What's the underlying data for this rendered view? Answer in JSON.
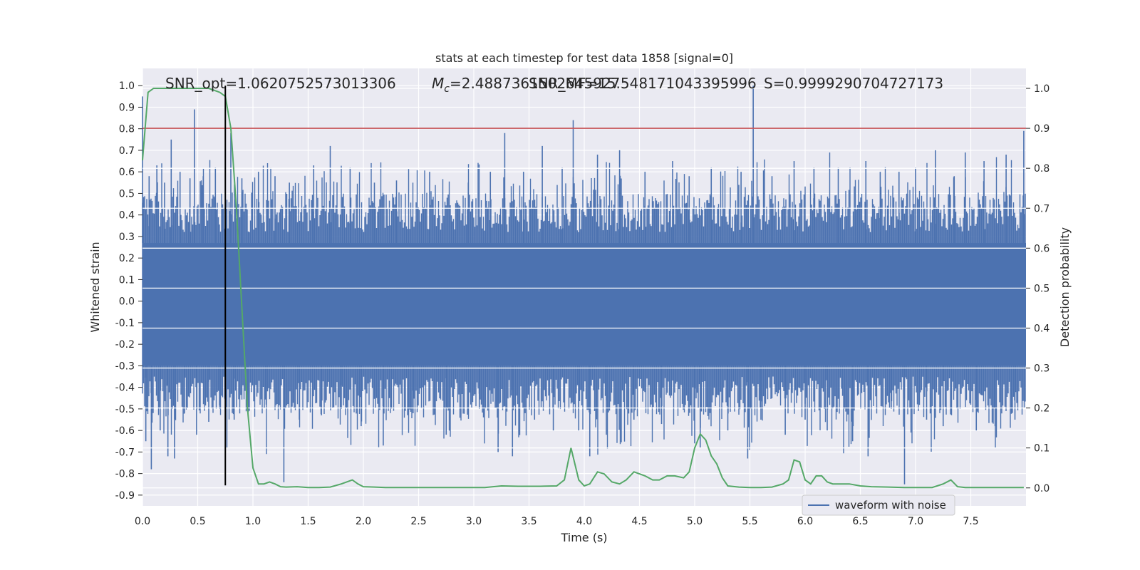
{
  "chart_data": {
    "type": "line",
    "title": "stats at each timestep for test data 1858 [signal=0]",
    "xlabel": "Time (s)",
    "ylabel": "Whitened strain",
    "y2label": "Detection probability",
    "xlim": [
      0,
      8
    ],
    "ylim": [
      -0.95,
      1.08
    ],
    "y2lim": [
      -0.045,
      1.05
    ],
    "xticks": [
      "0.0",
      "0.5",
      "1.0",
      "1.5",
      "2.0",
      "2.5",
      "3.0",
      "3.5",
      "4.0",
      "4.5",
      "5.0",
      "5.5",
      "6.0",
      "6.5",
      "7.0",
      "7.5"
    ],
    "yticks": [
      "-0.9",
      "-0.8",
      "-0.7",
      "-0.6",
      "-0.5",
      "-0.4",
      "-0.3",
      "-0.2",
      "-0.1",
      "0.0",
      "0.1",
      "0.2",
      "0.3",
      "0.4",
      "0.5",
      "0.6",
      "0.7",
      "0.8",
      "0.9",
      "1.0"
    ],
    "y2ticks": [
      "0.0",
      "0.1",
      "0.2",
      "0.3",
      "0.4",
      "0.5",
      "0.6",
      "0.7",
      "0.8",
      "0.9",
      "1.0"
    ],
    "grid": true,
    "legend_placement": "lower-right",
    "annotations": [
      {
        "text": "SNR_opt=1.0620752573013306"
      },
      {
        "text": "M",
        "sub": "c",
        "text_after": "=2.4887361502645927"
      },
      {
        "text": "SNR_MF=15.548171043395996"
      },
      {
        "text": "S=0.9999290704727173"
      }
    ],
    "threshold": {
      "axis": "y2",
      "value": 0.9,
      "color": "#c44e52"
    },
    "vline": {
      "x": 0.75,
      "color": "#000000",
      "y_range": [
        -0.855,
        1.0
      ]
    },
    "series": [
      {
        "name": "waveform with noise",
        "axis": "y",
        "color": "#4c72b0",
        "band_core": [
          -0.3,
          0.27
        ],
        "spikes": [
          {
            "x": 0.0,
            "v": 0.95
          },
          {
            "x": 0.03,
            "v": -0.65
          },
          {
            "x": 0.06,
            "v": 0.58
          },
          {
            "x": 0.08,
            "v": -0.78
          },
          {
            "x": 0.13,
            "v": 0.63
          },
          {
            "x": 0.16,
            "v": -0.6
          },
          {
            "x": 0.2,
            "v": 0.55
          },
          {
            "x": 0.23,
            "v": -0.72
          },
          {
            "x": 0.26,
            "v": 0.75
          },
          {
            "x": 0.29,
            "v": -0.73
          },
          {
            "x": 0.34,
            "v": 0.6
          },
          {
            "x": 0.38,
            "v": -0.52
          },
          {
            "x": 0.43,
            "v": 0.57
          },
          {
            "x": 0.47,
            "v": 0.89
          },
          {
            "x": 0.49,
            "v": -0.62
          },
          {
            "x": 0.55,
            "v": 0.58
          },
          {
            "x": 0.6,
            "v": -0.56
          },
          {
            "x": 0.66,
            "v": 0.62
          },
          {
            "x": 0.7,
            "v": -0.5
          },
          {
            "x": 0.8,
            "v": 0.78
          },
          {
            "x": 0.83,
            "v": -0.55
          },
          {
            "x": 0.9,
            "v": 0.57
          },
          {
            "x": 0.95,
            "v": -0.5
          },
          {
            "x": 1.05,
            "v": 0.6
          },
          {
            "x": 1.12,
            "v": -0.48
          },
          {
            "x": 1.2,
            "v": 0.58
          },
          {
            "x": 1.28,
            "v": -0.84
          },
          {
            "x": 1.33,
            "v": 0.55
          },
          {
            "x": 1.42,
            "v": -0.55
          },
          {
            "x": 1.55,
            "v": 0.63
          },
          {
            "x": 1.62,
            "v": -0.53
          },
          {
            "x": 1.7,
            "v": 0.72
          },
          {
            "x": 1.8,
            "v": -0.5
          },
          {
            "x": 1.88,
            "v": 0.62
          },
          {
            "x": 1.98,
            "v": -0.58
          },
          {
            "x": 2.1,
            "v": 0.55
          },
          {
            "x": 2.18,
            "v": -0.67
          },
          {
            "x": 2.3,
            "v": 0.56
          },
          {
            "x": 2.45,
            "v": -0.52
          },
          {
            "x": 2.6,
            "v": 0.6
          },
          {
            "x": 2.75,
            "v": -0.62
          },
          {
            "x": 2.95,
            "v": 0.55
          },
          {
            "x": 3.05,
            "v": -0.5
          },
          {
            "x": 3.15,
            "v": 0.6
          },
          {
            "x": 3.22,
            "v": -0.7
          },
          {
            "x": 3.28,
            "v": 0.78
          },
          {
            "x": 3.35,
            "v": -0.72
          },
          {
            "x": 3.45,
            "v": 0.6
          },
          {
            "x": 3.55,
            "v": -0.55
          },
          {
            "x": 3.62,
            "v": 0.72
          },
          {
            "x": 3.72,
            "v": -0.6
          },
          {
            "x": 3.8,
            "v": 0.62
          },
          {
            "x": 3.9,
            "v": 0.84
          },
          {
            "x": 3.95,
            "v": -0.6
          },
          {
            "x": 4.05,
            "v": -0.72
          },
          {
            "x": 4.12,
            "v": 0.68
          },
          {
            "x": 4.2,
            "v": -0.62
          },
          {
            "x": 4.32,
            "v": 0.7
          },
          {
            "x": 4.45,
            "v": -0.55
          },
          {
            "x": 4.55,
            "v": 0.6
          },
          {
            "x": 4.7,
            "v": -0.57
          },
          {
            "x": 4.8,
            "v": 0.65
          },
          {
            "x": 4.95,
            "v": 0.58
          },
          {
            "x": 5.0,
            "v": -0.66
          },
          {
            "x": 5.05,
            "v": -0.68
          },
          {
            "x": 5.15,
            "v": 0.62
          },
          {
            "x": 5.3,
            "v": -0.6
          },
          {
            "x": 5.42,
            "v": 0.6
          },
          {
            "x": 5.48,
            "v": -0.73
          },
          {
            "x": 5.53,
            "v": 1.0
          },
          {
            "x": 5.6,
            "v": -0.55
          },
          {
            "x": 5.7,
            "v": 0.58
          },
          {
            "x": 5.82,
            "v": -0.62
          },
          {
            "x": 5.9,
            "v": 0.65
          },
          {
            "x": 6.0,
            "v": -0.55
          },
          {
            "x": 6.08,
            "v": 0.62
          },
          {
            "x": 6.2,
            "v": -0.6
          },
          {
            "x": 6.3,
            "v": 0.62
          },
          {
            "x": 6.43,
            "v": -0.65
          },
          {
            "x": 6.55,
            "v": 0.65
          },
          {
            "x": 6.57,
            "v": -0.72
          },
          {
            "x": 6.68,
            "v": 0.6
          },
          {
            "x": 6.78,
            "v": -0.5
          },
          {
            "x": 6.85,
            "v": 0.6
          },
          {
            "x": 6.9,
            "v": -0.85
          },
          {
            "x": 7.0,
            "v": 0.62
          },
          {
            "x": 7.1,
            "v": -0.55
          },
          {
            "x": 7.18,
            "v": 0.7
          },
          {
            "x": 7.25,
            "v": -0.58
          },
          {
            "x": 7.35,
            "v": 0.58
          },
          {
            "x": 7.45,
            "v": 0.69
          },
          {
            "x": 7.55,
            "v": -0.6
          },
          {
            "x": 7.62,
            "v": 0.65
          },
          {
            "x": 7.72,
            "v": -0.58
          },
          {
            "x": 7.82,
            "v": 0.68
          },
          {
            "x": 7.9,
            "v": -0.55
          },
          {
            "x": 7.98,
            "v": 0.79
          }
        ]
      },
      {
        "axis": "y2",
        "color": "#55a868",
        "x": [
          0.0,
          0.05,
          0.1,
          0.2,
          0.3,
          0.4,
          0.5,
          0.6,
          0.7,
          0.75,
          0.8,
          0.85,
          0.9,
          0.95,
          1.0,
          1.05,
          1.1,
          1.15,
          1.2,
          1.25,
          1.3,
          1.4,
          1.5,
          1.6,
          1.7,
          1.8,
          1.9,
          1.95,
          2.0,
          2.1,
          2.2,
          2.3,
          2.5,
          2.7,
          2.9,
          3.1,
          3.25,
          3.4,
          3.6,
          3.75,
          3.82,
          3.88,
          3.95,
          4.0,
          4.05,
          4.12,
          4.18,
          4.25,
          4.32,
          4.38,
          4.45,
          4.5,
          4.55,
          4.62,
          4.68,
          4.75,
          4.82,
          4.9,
          4.95,
          5.0,
          5.05,
          5.1,
          5.15,
          5.2,
          5.25,
          5.3,
          5.4,
          5.5,
          5.6,
          5.7,
          5.8,
          5.85,
          5.9,
          5.95,
          6.0,
          6.05,
          6.1,
          6.15,
          6.2,
          6.25,
          6.3,
          6.4,
          6.5,
          6.6,
          6.75,
          6.9,
          7.0,
          7.15,
          7.25,
          7.32,
          7.38,
          7.45,
          7.6,
          7.75,
          7.9,
          7.98
        ],
        "y": [
          0.82,
          0.99,
          1.0,
          1.0,
          1.0,
          1.0,
          1.0,
          1.0,
          0.99,
          0.98,
          0.9,
          0.7,
          0.45,
          0.2,
          0.05,
          0.01,
          0.01,
          0.015,
          0.01,
          0.003,
          0.002,
          0.003,
          0.001,
          0.001,
          0.002,
          0.01,
          0.02,
          0.01,
          0.003,
          0.002,
          0.001,
          0.001,
          0.001,
          0.001,
          0.001,
          0.001,
          0.005,
          0.004,
          0.004,
          0.005,
          0.02,
          0.1,
          0.02,
          0.005,
          0.01,
          0.04,
          0.035,
          0.015,
          0.01,
          0.02,
          0.04,
          0.035,
          0.03,
          0.02,
          0.02,
          0.03,
          0.03,
          0.025,
          0.04,
          0.1,
          0.135,
          0.12,
          0.08,
          0.06,
          0.025,
          0.005,
          0.002,
          0.001,
          0.001,
          0.002,
          0.01,
          0.02,
          0.07,
          0.065,
          0.02,
          0.01,
          0.03,
          0.03,
          0.015,
          0.01,
          0.01,
          0.01,
          0.005,
          0.003,
          0.002,
          0.001,
          0.001,
          0.001,
          0.01,
          0.02,
          0.003,
          0.001,
          0.001,
          0.001,
          0.001,
          0.001
        ]
      }
    ]
  }
}
